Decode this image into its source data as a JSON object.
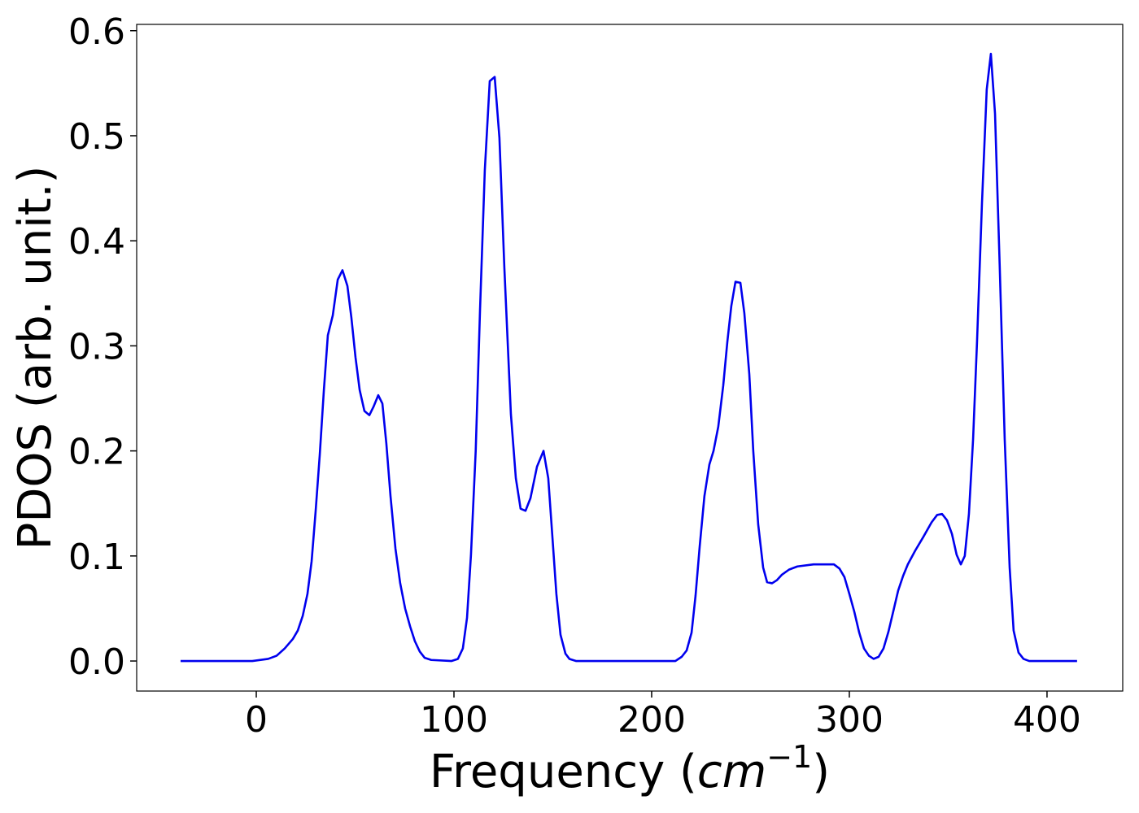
{
  "chart_data": {
    "type": "line",
    "xlabel": [
      "Frequency (",
      "cm",
      "−1",
      ")"
    ],
    "ylabel": "PDOS (arb. unit.)",
    "xlim": [
      -60.5,
      438.3
    ],
    "ylim": [
      -0.0286,
      0.606
    ],
    "xticks": [
      0,
      100,
      200,
      300,
      400
    ],
    "yticks": [
      {
        "value": 0,
        "label": "0.0"
      },
      0.1,
      0.2,
      0.3,
      0.4,
      0.5,
      0.6
    ],
    "grid": false,
    "series": [
      {
        "color": "#0000ee",
        "x": [
          -38.3,
          -2,
          6,
          10.3,
          14.4,
          18.5,
          21,
          23.5,
          25.9,
          28,
          30,
          32.1,
          34.2,
          36.2,
          38.7,
          41.2,
          43.6,
          46.1,
          48.1,
          50.2,
          52.3,
          54.7,
          57.2,
          59.3,
          61.7,
          63.8,
          65.8,
          67.9,
          70.4,
          72.8,
          75.3,
          77.8,
          80.2,
          82.7,
          85.2,
          88.5,
          98.8,
          102,
          104.5,
          106.6,
          108.6,
          111,
          113.2,
          115.6,
          118.1,
          120.6,
          123,
          125.5,
          128.8,
          131.3,
          133.7,
          136.2,
          138.7,
          142,
          145.3,
          147.7,
          149.8,
          151.8,
          153.9,
          156.4,
          158.4,
          161.7,
          212,
          215.2,
          217.7,
          220.2,
          222.2,
          224.3,
          226.7,
          229.2,
          231.3,
          233.7,
          236.2,
          238.3,
          240.3,
          242.4,
          244.9,
          246.9,
          249.4,
          251.4,
          253.9,
          256.4,
          258.4,
          260.9,
          263.4,
          265.8,
          269.5,
          273.7,
          281.9,
          292.2,
          295,
          297.5,
          300,
          302.5,
          305,
          307.4,
          309.9,
          312.3,
          314.8,
          317.3,
          319.8,
          322.2,
          324.7,
          327.2,
          329.6,
          333.3,
          337.4,
          341.6,
          344.4,
          346.9,
          349.4,
          351.9,
          354.3,
          356.4,
          358.4,
          360.5,
          362.6,
          364.6,
          367.1,
          369.5,
          371.6,
          373.7,
          376.1,
          378.6,
          381.1,
          383.1,
          385.6,
          388.1,
          391,
          415.2
        ],
        "values": [
          0,
          0,
          0.002,
          0.005,
          0.012,
          0.021,
          0.029,
          0.043,
          0.064,
          0.095,
          0.142,
          0.196,
          0.258,
          0.31,
          0.329,
          0.363,
          0.372,
          0.357,
          0.327,
          0.289,
          0.258,
          0.238,
          0.234,
          0.242,
          0.253,
          0.245,
          0.207,
          0.157,
          0.107,
          0.074,
          0.05,
          0.033,
          0.019,
          0.009,
          0.003,
          0.001,
          0,
          0.002,
          0.012,
          0.041,
          0.101,
          0.2,
          0.335,
          0.467,
          0.552,
          0.556,
          0.498,
          0.374,
          0.235,
          0.174,
          0.145,
          0.143,
          0.155,
          0.185,
          0.2,
          0.174,
          0.118,
          0.064,
          0.025,
          0.007,
          0.002,
          0,
          0,
          0.004,
          0.01,
          0.027,
          0.062,
          0.109,
          0.157,
          0.187,
          0.2,
          0.223,
          0.262,
          0.304,
          0.338,
          0.361,
          0.36,
          0.331,
          0.273,
          0.2,
          0.13,
          0.089,
          0.075,
          0.074,
          0.077,
          0.082,
          0.087,
          0.09,
          0.092,
          0.092,
          0.088,
          0.08,
          0.064,
          0.047,
          0.027,
          0.012,
          0.005,
          0.002,
          0.004,
          0.012,
          0.028,
          0.047,
          0.067,
          0.081,
          0.092,
          0.105,
          0.118,
          0.132,
          0.139,
          0.14,
          0.134,
          0.121,
          0.101,
          0.092,
          0.1,
          0.14,
          0.211,
          0.304,
          0.436,
          0.544,
          0.578,
          0.521,
          0.374,
          0.211,
          0.089,
          0.029,
          0.008,
          0.002,
          0,
          0
        ]
      }
    ]
  }
}
